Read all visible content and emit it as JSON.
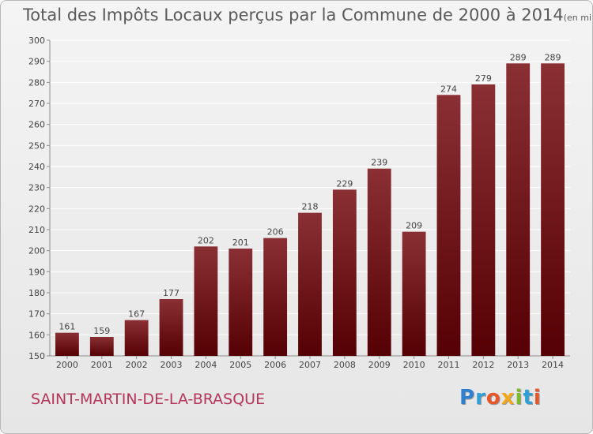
{
  "title": "Total des Impôts Locaux perçus par la Commune de 2000 à 2014",
  "title_unit": "(en milliers d'€)",
  "commune": "SAINT-MARTIN-DE-LA-BRASQUE",
  "logo": {
    "text": "Proxiti",
    "letters": [
      "P",
      "r",
      "o",
      "x",
      "i",
      "t",
      "i"
    ],
    "colors": [
      "#2f7fd0",
      "#2f9fd6",
      "#e8562a",
      "#f0a81e",
      "#7dbb2c",
      "#2f9fd6",
      "#e8562a"
    ]
  },
  "colors": {
    "bar_light": "#8a3034",
    "bar_dark": "#550004",
    "grid": "#ffffff",
    "axis": "#8c8c8c",
    "text": "#444444"
  },
  "chart_data": {
    "type": "bar",
    "title": "Total des Impôts Locaux perçus par la Commune de 2000 à 2014",
    "xlabel": "",
    "ylabel": "",
    "ylim": [
      150,
      300
    ],
    "yticks": [
      150,
      160,
      170,
      180,
      190,
      200,
      210,
      220,
      230,
      240,
      250,
      260,
      270,
      280,
      290,
      300
    ],
    "categories": [
      "2000",
      "2001",
      "2002",
      "2003",
      "2004",
      "2005",
      "2006",
      "2007",
      "2008",
      "2009",
      "2010",
      "2011",
      "2012",
      "2013",
      "2014"
    ],
    "values": [
      161,
      159,
      167,
      177,
      202,
      201,
      206,
      218,
      229,
      239,
      209,
      274,
      279,
      289,
      289
    ],
    "grid": true,
    "legend": "none"
  }
}
